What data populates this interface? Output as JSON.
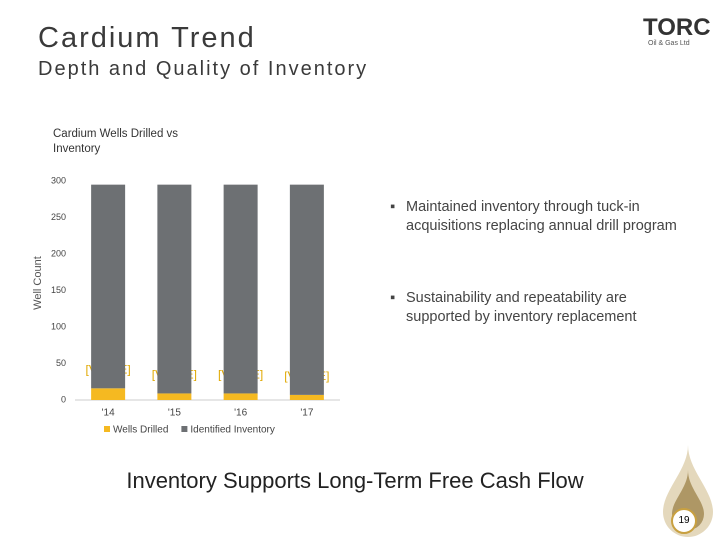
{
  "slide": {
    "title": "Cardium Trend",
    "subtitle": "Depth and Quality of Inventory",
    "logo": "TORC",
    "logo_sub": "Oil & Gas Ltd",
    "bullets": [
      "Maintained inventory through tuck-in acquisitions replacing annual drill program",
      "Sustainability and repeatability are supported by inventory replacement"
    ],
    "footer": "Inventory Supports Long-Term Free Cash Flow",
    "page_number": "19"
  },
  "chart_data": {
    "type": "stacked_bar",
    "title": "Cardium Wells Drilled vs Inventory",
    "y_label": "Well Count",
    "categories": [
      "'14",
      "'15",
      "'16",
      "'17"
    ],
    "series": [
      {
        "name": "Wells Drilled",
        "color": "#f5b921",
        "values": [
          16,
          9,
          9,
          7
        ],
        "value_labels": [
          "[VALUE]",
          "[VALUE]",
          "[VALUE]",
          "[VALUE]"
        ]
      },
      {
        "name": "Identified Inventory",
        "color": "#6d7073",
        "values": [
          279,
          286,
          286,
          288
        ]
      }
    ],
    "ylim": [
      0,
      300
    ],
    "yticks": [
      0,
      50,
      100,
      150,
      200,
      250,
      300
    ],
    "grid": false
  }
}
